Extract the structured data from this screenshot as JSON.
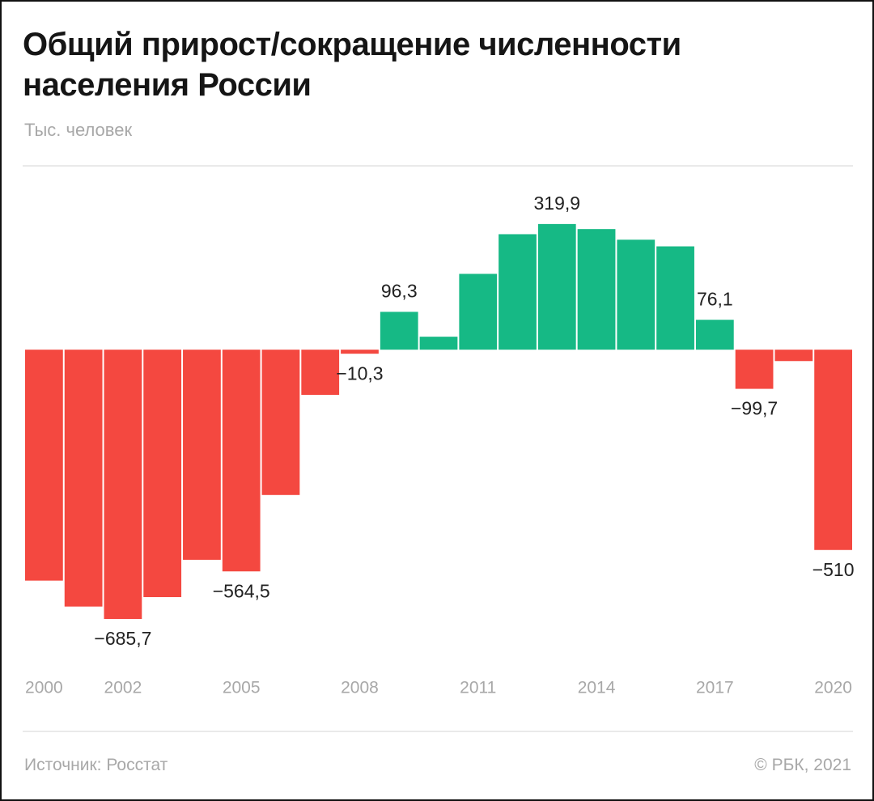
{
  "chart_data": {
    "type": "bar",
    "title": "Общий прирост/сокращение численности населения России",
    "subtitle": "Тыс. человек",
    "source": "Источник: Росстат",
    "copyright": "© РБК, 2021",
    "categories": [
      "2000",
      null,
      "2002",
      null,
      null,
      "2005",
      null,
      null,
      "2008",
      null,
      null,
      "2011",
      null,
      null,
      "2014",
      null,
      null,
      "2017",
      null,
      null,
      "2020"
    ],
    "values": [
      -588,
      -654,
      -685.7,
      -630,
      -535,
      -564.5,
      -370,
      -115,
      -10.3,
      96.3,
      33,
      193,
      294,
      319.9,
      307,
      280,
      263,
      76.1,
      -99.7,
      -29,
      -510
    ],
    "value_labels": [
      null,
      null,
      "−685,7",
      null,
      null,
      "−564,5",
      null,
      null,
      "−10,3",
      "96,3",
      null,
      null,
      null,
      "319,9",
      null,
      null,
      null,
      "76,1",
      "−99,7",
      null,
      "−510"
    ],
    "positive_color": "#16b985",
    "negative_color": "#f44840",
    "ylim": [
      -700,
      400
    ],
    "grid": false
  }
}
